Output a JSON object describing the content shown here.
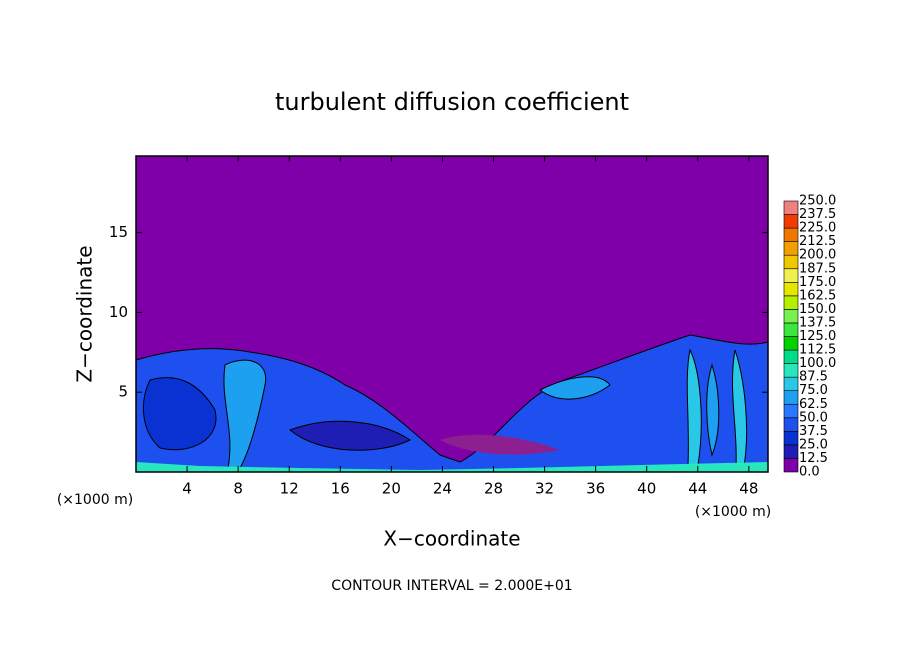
{
  "chart_data": {
    "type": "contour",
    "title": "turbulent diffusion coefficient",
    "xlabel": "X−coordinate",
    "ylabel": "Z−coordinate",
    "x_unit_labels": [
      "(×1000 m)",
      "(×1000 m)"
    ],
    "annotation": "CONTOUR INTERVAL = 2.000E+01",
    "xlim": [
      0,
      49.5
    ],
    "ylim": [
      0,
      19.8
    ],
    "xticks": [
      4,
      8,
      12,
      16,
      20,
      24,
      28,
      32,
      36,
      40,
      44,
      48
    ],
    "yticks": [
      5,
      10,
      15
    ],
    "colorbar": {
      "ticks": [
        {
          "value": 0,
          "label": "0.0"
        },
        {
          "value": 12.5,
          "label": "12.5"
        },
        {
          "value": 25,
          "label": "25.0"
        },
        {
          "value": 37.5,
          "label": "37.5"
        },
        {
          "value": 50,
          "label": "50.0"
        },
        {
          "value": 62.5,
          "label": "62.5"
        },
        {
          "value": 75,
          "label": "75.0"
        },
        {
          "value": 87.5,
          "label": "87.5"
        },
        {
          "value": 100,
          "label": "100.0"
        },
        {
          "value": 112.5,
          "label": "112.5"
        },
        {
          "value": 125,
          "label": "125.0"
        },
        {
          "value": 137.5,
          "label": "137.5"
        },
        {
          "value": 150,
          "label": "150.0"
        },
        {
          "value": 162.5,
          "label": "162.5"
        },
        {
          "value": 175,
          "label": "175.0"
        },
        {
          "value": 187.5,
          "label": "187.5"
        },
        {
          "value": 200,
          "label": "200.0"
        },
        {
          "value": 212.5,
          "label": "212.5"
        },
        {
          "value": 225,
          "label": "225.0"
        },
        {
          "value": 237.5,
          "label": "237.5"
        },
        {
          "value": 250,
          "label": "250.0"
        }
      ],
      "colors": [
        "#7f00a8",
        "#1e1eb4",
        "#0a32d2",
        "#1e50f0",
        "#2878ff",
        "#1ea0f0",
        "#28c8e6",
        "#28e6be",
        "#00dc8c",
        "#00d200",
        "#3ce63c",
        "#78f050",
        "#b4f000",
        "#e6e600",
        "#f0f050",
        "#f0c800",
        "#f0a000",
        "#f07800",
        "#f03c00",
        "#f08080"
      ]
    }
  }
}
